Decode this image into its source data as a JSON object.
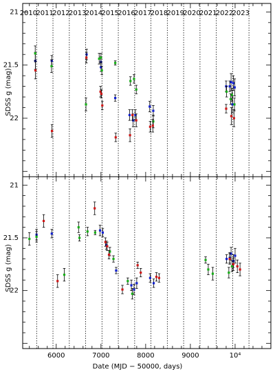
{
  "chart_data": [
    {
      "type": "scatter",
      "panel": "top",
      "title": "",
      "xlabel": "",
      "ylabel": "SDSS g (mag)",
      "xlim": [
        5250,
        10800
      ],
      "ylim": [
        22.55,
        20.92
      ],
      "y_inverted": true,
      "yticks": [
        21,
        21.5,
        22
      ],
      "year_labels": [
        "2010",
        "2011",
        "2012",
        "2013",
        "2014",
        "2015",
        "2016",
        "2017",
        "2018",
        "2019",
        "2020",
        "2021",
        "2022",
        "2023"
      ],
      "year_boundaries": [
        5197,
        5562,
        5927,
        6293,
        6658,
        7023,
        7388,
        7754,
        8119,
        8484,
        8849,
        9215,
        9580,
        9945,
        10310
      ],
      "series": [
        {
          "color": "#1020d0",
          "points": [
            [
              5533,
              21.46,
              0.08
            ],
            [
              5900,
              21.46,
              0.05
            ],
            [
              6680,
              21.4,
              0.05
            ],
            [
              7000,
              21.47,
              0.05
            ],
            [
              7000,
              21.52,
              0.04
            ],
            [
              7320,
              21.81,
              0.03
            ],
            [
              7640,
              21.97,
              0.05
            ],
            [
              7720,
              22.02,
              0.06
            ],
            [
              7770,
              21.97,
              0.05
            ],
            [
              8090,
              21.89,
              0.05
            ],
            [
              8170,
              21.93,
              0.05
            ],
            [
              9800,
              21.7,
              0.05
            ],
            [
              9880,
              21.7,
              0.05
            ],
            [
              9910,
              21.66,
              0.08
            ],
            [
              9960,
              21.67,
              0.07
            ],
            [
              9990,
              21.71,
              0.08
            ],
            [
              9940,
              21.87,
              0.08
            ]
          ]
        },
        {
          "color": "#18b018",
          "points": [
            [
              5530,
              21.39,
              0.07
            ],
            [
              5895,
              21.51,
              0.06
            ],
            [
              6665,
              21.87,
              0.06
            ],
            [
              6960,
              21.44,
              0.05
            ],
            [
              7000,
              21.43,
              0.04
            ],
            [
              7020,
              21.55,
              0.04
            ],
            [
              7320,
              21.48,
              0.02
            ],
            [
              7660,
              21.65,
              0.04
            ],
            [
              7740,
              21.63,
              0.04
            ],
            [
              7790,
              21.73,
              0.04
            ],
            [
              8170,
              22.03,
              0.06
            ],
            [
              9810,
              21.75,
              0.05
            ],
            [
              9900,
              21.82,
              0.05
            ],
            [
              9930,
              21.78,
              0.06
            ],
            [
              9985,
              21.87,
              0.06
            ]
          ]
        },
        {
          "color": "#d01818",
          "points": [
            [
              5535,
              21.55,
              0.08
            ],
            [
              5905,
              22.12,
              0.06
            ],
            [
              6675,
              21.43,
              0.05
            ],
            [
              6990,
              21.75,
              0.05
            ],
            [
              7010,
              21.77,
              0.04
            ],
            [
              7030,
              21.88,
              0.04
            ],
            [
              7330,
              22.18,
              0.04
            ],
            [
              7650,
              22.16,
              0.06
            ],
            [
              7705,
              21.97,
              0.05
            ],
            [
              7790,
              22.02,
              0.06
            ],
            [
              8100,
              22.08,
              0.05
            ],
            [
              8160,
              22.07,
              0.06
            ],
            [
              9800,
              21.91,
              0.04
            ],
            [
              9915,
              21.98,
              0.08
            ],
            [
              9975,
              22.0,
              0.08
            ]
          ]
        }
      ]
    },
    {
      "type": "scatter",
      "panel": "bottom",
      "title": "",
      "xlabel": "Date (MJD − 50000, days)",
      "ylabel": "SDSS g (mag)",
      "xlim": [
        5250,
        10800
      ],
      "ylim": [
        22.55,
        20.92
      ],
      "y_inverted": true,
      "xticks": [
        6000,
        7000,
        8000,
        9000,
        10000
      ],
      "xtick_labels": [
        "6000",
        "7000",
        "8000",
        "9000",
        "10⁴"
      ],
      "yticks": [
        21,
        21.5,
        22
      ],
      "year_boundaries": [
        5197,
        5562,
        5927,
        6293,
        6658,
        7023,
        7388,
        7754,
        8119,
        8484,
        8849,
        9215,
        9580,
        9945,
        10310
      ],
      "series": [
        {
          "color": "#1020d0",
          "points": [
            [
              5560,
              21.47,
              0.05
            ],
            [
              5900,
              21.46,
              0.04
            ],
            [
              6980,
              21.43,
              0.05
            ],
            [
              7040,
              21.45,
              0.04
            ],
            [
              7120,
              21.57,
              0.04
            ],
            [
              7340,
              21.81,
              0.03
            ],
            [
              7680,
              21.95,
              0.05
            ],
            [
              7740,
              21.99,
              0.05
            ],
            [
              7800,
              21.93,
              0.05
            ],
            [
              8100,
              21.88,
              0.04
            ],
            [
              8180,
              21.93,
              0.04
            ],
            [
              9810,
              21.7,
              0.04
            ],
            [
              9880,
              21.69,
              0.05
            ],
            [
              9910,
              21.65,
              0.06
            ],
            [
              9960,
              21.72,
              0.06
            ],
            [
              10000,
              21.67,
              0.07
            ]
          ]
        },
        {
          "color": "#18b018",
          "points": [
            [
              5400,
              21.51,
              0.06
            ],
            [
              5560,
              21.49,
              0.05
            ],
            [
              6180,
              21.85,
              0.06
            ],
            [
              6500,
              21.4,
              0.05
            ],
            [
              6520,
              21.5,
              0.03
            ],
            [
              6700,
              21.44,
              0.04
            ],
            [
              6870,
              21.45,
              0.02
            ],
            [
              7200,
              21.63,
              0.04
            ],
            [
              7280,
              21.7,
              0.03
            ],
            [
              7600,
              21.91,
              0.03
            ],
            [
              7700,
              22.03,
              0.05
            ],
            [
              9340,
              21.71,
              0.03
            ],
            [
              9400,
              21.8,
              0.05
            ],
            [
              9500,
              21.84,
              0.06
            ],
            [
              9860,
              21.83,
              0.05
            ],
            [
              9930,
              21.77,
              0.05
            ]
          ]
        },
        {
          "color": "#d01818",
          "points": [
            [
              5720,
              21.34,
              0.06
            ],
            [
              6030,
              21.91,
              0.06
            ],
            [
              6860,
              21.22,
              0.06
            ],
            [
              7100,
              21.54,
              0.04
            ],
            [
              7140,
              21.58,
              0.04
            ],
            [
              7180,
              21.66,
              0.04
            ],
            [
              7480,
              21.99,
              0.04
            ],
            [
              7820,
              21.76,
              0.03
            ],
            [
              7890,
              21.83,
              0.04
            ],
            [
              8240,
              21.87,
              0.04
            ],
            [
              8300,
              21.88,
              0.04
            ],
            [
              9880,
              21.7,
              0.05
            ],
            [
              9960,
              21.75,
              0.06
            ],
            [
              10050,
              21.77,
              0.06
            ],
            [
              10110,
              21.8,
              0.06
            ]
          ]
        }
      ]
    }
  ]
}
